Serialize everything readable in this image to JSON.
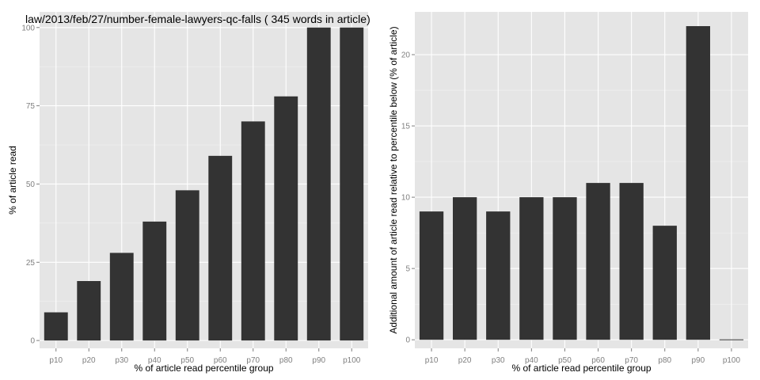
{
  "chart_data": [
    {
      "type": "bar",
      "title": "law/2013/feb/27/number-female-lawyers-qc-falls ( 345 words in article)",
      "xlabel": "% of article read percentile group",
      "ylabel": "% of article read",
      "categories": [
        "p10",
        "p20",
        "p30",
        "p40",
        "p50",
        "p60",
        "p70",
        "p80",
        "p90",
        "p100"
      ],
      "values": [
        9,
        19,
        28,
        38,
        48,
        59,
        70,
        78,
        100,
        100
      ],
      "ylim": [
        -2.5,
        105
      ],
      "yticks": [
        0,
        25,
        50,
        75,
        100
      ],
      "grid": true,
      "bar_color": "#333333",
      "panel_color": "#e5e5e5"
    },
    {
      "type": "bar",
      "title": "",
      "xlabel": "% of article read percentile group",
      "ylabel": "Additional amount of article read relative to percentile below (% of article)",
      "categories": [
        "p10",
        "p20",
        "p30",
        "p40",
        "p50",
        "p60",
        "p70",
        "p80",
        "p90",
        "p100"
      ],
      "values": [
        9,
        10,
        9,
        10,
        10,
        11,
        11,
        8,
        22,
        0
      ],
      "ylim": [
        -0.6,
        23
      ],
      "yticks": [
        0,
        5,
        10,
        15,
        20
      ],
      "grid": true,
      "bar_color": "#333333",
      "panel_color": "#e5e5e5"
    }
  ]
}
